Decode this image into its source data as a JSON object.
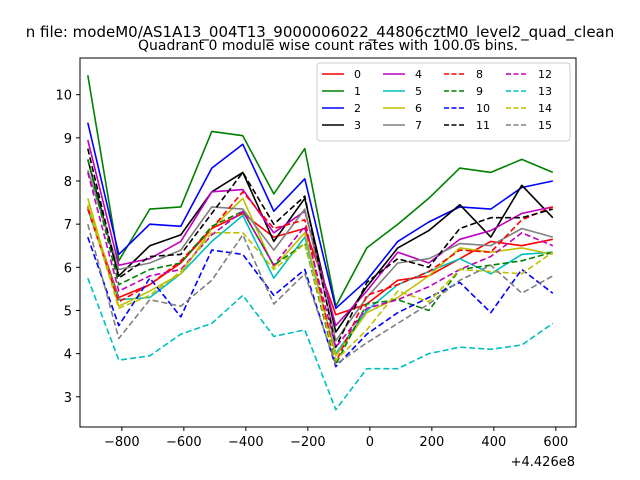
{
  "chart_data": {
    "type": "line",
    "suptitle": "n file: modeM0/AS1A13_004T13_9000006022_44806cztM0_level2_quad_clean",
    "title": "Quadrant 0 module wise count rates with 100.0s bins.",
    "xlabel": "",
    "ylabel": "",
    "x_offset_label": "+4.426e8",
    "x_ticks": [
      -800,
      -600,
      -400,
      -200,
      0,
      200,
      400,
      600
    ],
    "y_ticks": [
      3,
      4,
      5,
      6,
      7,
      8,
      9,
      10
    ],
    "xlim": [
      -935,
      665
    ],
    "ylim": [
      2.3,
      10.85
    ],
    "grid": false,
    "legend_position": "top-right",
    "x": [
      -910,
      -810,
      -710,
      -610,
      -510,
      -410,
      -310,
      -210,
      -110,
      -10,
      90,
      190,
      290,
      390,
      490,
      590
    ],
    "series": [
      {
        "name": "0",
        "color": "#ff0000",
        "dash": false,
        "values": [
          7.4,
          5.3,
          5.6,
          6.1,
          6.9,
          7.25,
          6.7,
          6.9,
          4.9,
          5.15,
          5.7,
          5.8,
          6.2,
          6.6,
          6.5,
          6.65
        ]
      },
      {
        "name": "1",
        "color": "#008000",
        "dash": false,
        "values": [
          10.45,
          6.15,
          7.35,
          7.4,
          9.15,
          9.05,
          7.7,
          8.75,
          5.1,
          6.45,
          7.0,
          7.6,
          8.3,
          8.2,
          8.5,
          8.2
        ]
      },
      {
        "name": "2",
        "color": "#0000ff",
        "dash": false,
        "values": [
          9.35,
          6.3,
          7.0,
          6.95,
          8.3,
          8.85,
          7.3,
          8.05,
          5.05,
          5.7,
          6.6,
          7.05,
          7.4,
          7.35,
          7.85,
          8.0
        ]
      },
      {
        "name": "3",
        "color": "#000000",
        "dash": false,
        "values": [
          8.5,
          5.8,
          6.5,
          6.75,
          7.75,
          8.2,
          6.6,
          7.6,
          4.5,
          5.55,
          6.45,
          6.85,
          7.45,
          6.7,
          7.9,
          7.15
        ]
      },
      {
        "name": "4",
        "color": "#bf00bf",
        "dash": false,
        "values": [
          8.95,
          6.05,
          6.2,
          6.6,
          7.75,
          7.8,
          6.8,
          7.3,
          4.65,
          5.45,
          6.35,
          6.1,
          6.65,
          6.85,
          7.25,
          7.4
        ]
      },
      {
        "name": "5",
        "color": "#00bfbf",
        "dash": false,
        "values": [
          7.35,
          5.25,
          5.3,
          5.85,
          6.6,
          7.2,
          5.75,
          6.7,
          4.0,
          5.0,
          5.6,
          5.9,
          6.2,
          5.85,
          6.3,
          6.35
        ]
      },
      {
        "name": "6",
        "color": "#bfbf00",
        "dash": false,
        "values": [
          7.6,
          5.1,
          5.45,
          5.85,
          6.9,
          7.6,
          6.0,
          6.8,
          3.95,
          4.95,
          5.3,
          5.8,
          6.45,
          6.35,
          6.45,
          6.3
        ]
      },
      {
        "name": "7",
        "color": "#808080",
        "dash": false,
        "values": [
          8.25,
          5.95,
          6.1,
          6.4,
          7.4,
          7.35,
          6.4,
          7.35,
          4.3,
          5.3,
          6.1,
          6.2,
          6.55,
          6.5,
          6.9,
          6.7
        ]
      },
      {
        "name": "8",
        "color": "#ff0000",
        "dash": true,
        "values": [
          7.35,
          5.2,
          5.6,
          6.15,
          6.9,
          7.75,
          6.9,
          7.1,
          3.8,
          5.35,
          5.6,
          5.9,
          6.4,
          6.35,
          7.1,
          7.4
        ]
      },
      {
        "name": "9",
        "color": "#008000",
        "dash": true,
        "values": [
          8.5,
          5.6,
          5.95,
          6.1,
          6.95,
          7.3,
          6.05,
          6.55,
          3.75,
          5.15,
          5.25,
          5.0,
          5.95,
          6.05,
          6.15,
          6.35
        ]
      },
      {
        "name": "10",
        "color": "#0000ff",
        "dash": true,
        "values": [
          6.7,
          4.65,
          5.75,
          4.85,
          6.4,
          6.3,
          5.35,
          5.95,
          3.7,
          4.45,
          4.95,
          5.3,
          5.65,
          4.95,
          5.95,
          5.4
        ]
      },
      {
        "name": "11",
        "color": "#000000",
        "dash": true,
        "values": [
          8.75,
          5.75,
          6.25,
          6.3,
          7.25,
          8.2,
          7.0,
          7.65,
          4.15,
          5.65,
          6.2,
          6.0,
          6.9,
          7.15,
          7.15,
          7.35
        ]
      },
      {
        "name": "12",
        "color": "#bf00bf",
        "dash": true,
        "values": [
          8.2,
          5.45,
          5.8,
          5.95,
          6.75,
          7.3,
          6.05,
          6.95,
          4.15,
          5.05,
          5.25,
          5.55,
          5.95,
          6.25,
          6.8,
          6.5
        ]
      },
      {
        "name": "13",
        "color": "#00bfbf",
        "dash": true,
        "values": [
          5.75,
          3.85,
          3.95,
          4.45,
          4.7,
          5.35,
          4.4,
          4.55,
          2.7,
          3.65,
          3.65,
          4.0,
          4.15,
          4.1,
          4.2,
          4.7
        ]
      },
      {
        "name": "14",
        "color": "#bfbf00",
        "dash": true,
        "values": [
          7.45,
          5.05,
          5.35,
          5.9,
          6.8,
          6.8,
          5.95,
          6.55,
          3.85,
          4.55,
          5.45,
          5.2,
          5.95,
          5.9,
          5.85,
          6.35
        ]
      },
      {
        "name": "15",
        "color": "#808080",
        "dash": true,
        "values": [
          7.0,
          4.35,
          5.25,
          5.1,
          5.7,
          6.75,
          5.15,
          5.85,
          3.75,
          4.25,
          4.7,
          5.15,
          5.7,
          6.05,
          5.4,
          5.8
        ]
      }
    ]
  }
}
